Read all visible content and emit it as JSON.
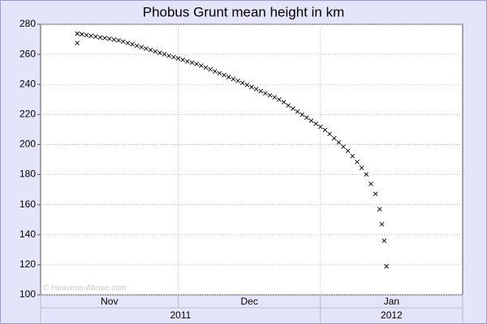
{
  "chart_data": {
    "type": "scatter",
    "title": "Phobus Grunt mean height in km",
    "watermark": "© Heavens-Above.com",
    "color": "#000000",
    "x": [
      8,
      8,
      9,
      10,
      11,
      12,
      13,
      14,
      15,
      16,
      17,
      18,
      19,
      20,
      21,
      22,
      23,
      24,
      25,
      26,
      27,
      28,
      29,
      30,
      31,
      32,
      33,
      34,
      35,
      36,
      37,
      38,
      39,
      40,
      41,
      42,
      43,
      44,
      45,
      46,
      47,
      48,
      49,
      50,
      51,
      52,
      53,
      54,
      55,
      56,
      57,
      58,
      59,
      60,
      61,
      62,
      63,
      64,
      65,
      66,
      67,
      68,
      69,
      70,
      71,
      72,
      73,
      73.9,
      74.4,
      74.9,
      75.4
    ],
    "values": [
      267.5,
      273.8,
      273.4,
      272.8,
      272.3,
      271.8,
      271.3,
      270.9,
      270.4,
      269.8,
      269.3,
      268.5,
      267.6,
      266.7,
      265.7,
      264.8,
      263.8,
      262.9,
      261.9,
      261.0,
      260.1,
      259.1,
      258.2,
      257.3,
      256.4,
      255.4,
      254.5,
      253.6,
      252.5,
      251.2,
      250.0,
      248.7,
      247.4,
      246.2,
      244.9,
      243.6,
      242.4,
      241.0,
      239.7,
      238.3,
      236.9,
      235.5,
      234.1,
      232.8,
      231.4,
      230.0,
      228.2,
      226.0,
      224.0,
      221.9,
      219.9,
      217.9,
      215.9,
      213.8,
      211.8,
      209.7,
      207.0,
      204.2,
      201.4,
      198.6,
      195.8,
      192.3,
      188.4,
      184.5,
      180.2,
      173.8,
      167.2,
      157,
      147,
      136,
      119
    ],
    "xlim": [
      0,
      92
    ],
    "xticks": [
      {
        "value": 15,
        "label": "Nov"
      },
      {
        "value": 45.5,
        "label": "Dec"
      },
      {
        "value": 76.5,
        "label": "Jan"
      }
    ],
    "xgrid": [
      30,
      61
    ],
    "years": [
      {
        "value": 30.5,
        "label": "2011"
      },
      {
        "value": 76.5,
        "label": "2012"
      }
    ],
    "year_divider": 61,
    "ylim": [
      100,
      280
    ],
    "yticks": [
      100,
      120,
      140,
      160,
      180,
      200,
      220,
      240,
      260,
      280
    ],
    "grid": true
  }
}
